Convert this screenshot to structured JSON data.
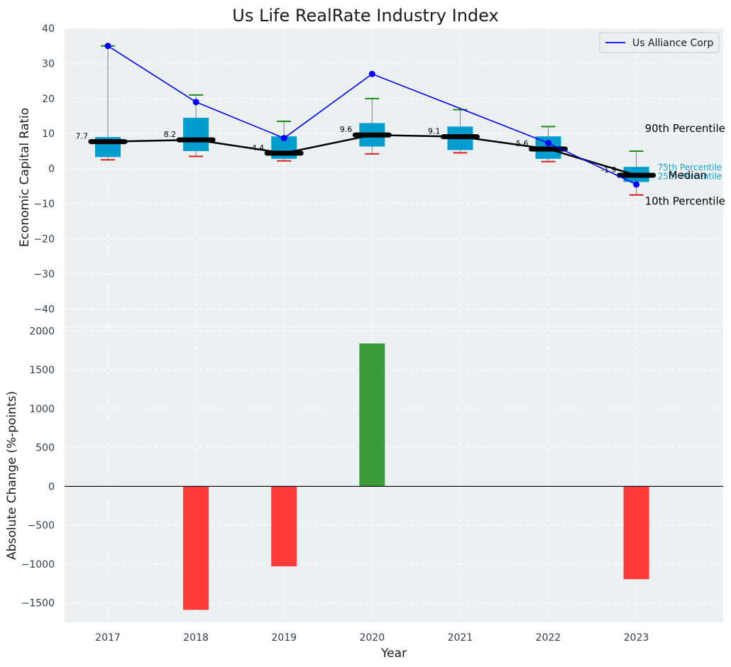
{
  "chart_data": [
    {
      "type": "box",
      "title": "Us Life RealRate Industry Index",
      "ylabel": "Economic Capital Ratio",
      "ylim": [
        -45,
        40
      ],
      "yticks": [
        40,
        30,
        20,
        10,
        0,
        -10,
        -20,
        -30,
        -40
      ],
      "ytick_labels": [
        "40",
        "30",
        "20",
        "10",
        "0",
        "−10",
        "−20",
        "−30",
        "−40"
      ],
      "categories": [
        "2017",
        "2018",
        "2019",
        "2020",
        "2021",
        "2022",
        "2023"
      ],
      "p10": [
        2.5,
        3.5,
        2.2,
        4.2,
        4.5,
        2.0,
        -7.5
      ],
      "p25": [
        3.3,
        5.0,
        2.8,
        6.3,
        5.3,
        2.8,
        -3.8
      ],
      "median": [
        7.7,
        8.2,
        4.4,
        9.6,
        9.1,
        5.6,
        -1.9
      ],
      "p75": [
        9.0,
        14.5,
        9.2,
        13.0,
        12.0,
        9.2,
        0.5
      ],
      "p90": [
        35.0,
        21.0,
        13.5,
        20.0,
        16.8,
        12.0,
        5.0
      ],
      "median_labels": [
        "7.7",
        "8.2",
        "4.4",
        "9.6",
        "9.1",
        "5.6",
        "-1.9"
      ],
      "series": [
        {
          "name": "Us Alliance Corp",
          "color": "#0000ff",
          "values": [
            35.0,
            19.0,
            8.7,
            27.0,
            null,
            7.3,
            -4.5
          ]
        }
      ],
      "legend": {
        "entries": [
          "Us Alliance Corp"
        ],
        "placement": "top-right"
      },
      "annotations": {
        "p90": "90th Percentile",
        "p75": "75th Percentile",
        "median": "Median",
        "p25": "25th Percentile",
        "p10": "10th Percentile"
      },
      "colors": {
        "box": "#009ecf",
        "median_line": "#000000",
        "p10_cap": "#e41a1c",
        "p90_cap": "#1f8a1f",
        "background": "#ebf0f2"
      },
      "grid": true
    },
    {
      "type": "bar",
      "xlabel": "Year",
      "ylabel": "Absolute Change (%-points)",
      "ylim": [
        -1750,
        2050
      ],
      "yticks": [
        2000,
        1500,
        1000,
        500,
        0,
        -500,
        -1000,
        -1500
      ],
      "ytick_labels": [
        "2000",
        "1500",
        "1000",
        "500",
        "0",
        "−500",
        "−1000",
        "−1500"
      ],
      "categories": [
        "2017",
        "2018",
        "2019",
        "2020",
        "2021",
        "2022",
        "2023"
      ],
      "values": [
        0,
        -1590,
        -1030,
        1840,
        0,
        0,
        -1195
      ],
      "colors": {
        "positive": "#3a9d3a",
        "negative": "#ff3b3b",
        "background": "#ebf0f2"
      },
      "grid": true
    }
  ]
}
